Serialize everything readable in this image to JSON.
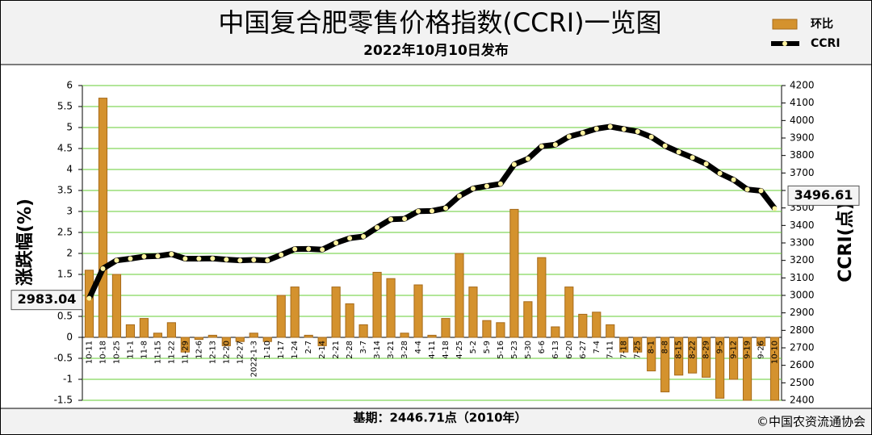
{
  "chart_data": {
    "type": "bar",
    "title": "中国复合肥零售价格指数(CCRI)一览图",
    "subtitle": "2022年10月10日发布",
    "y_label": "涨跌幅(%)",
    "y2_label": "CCRI(点)",
    "footnote": "基期：2446.71点（2010年）",
    "source": "©中国农资流通协会",
    "categories": [
      "10-11",
      "10-18",
      "10-25",
      "11-1",
      "11-8",
      "11-15",
      "11-22",
      "11-29",
      "12-6",
      "12-13",
      "12-20",
      "12-27",
      "2022-1-3",
      "1-10",
      "1-17",
      "1-24",
      "2-7",
      "2-14",
      "2-21",
      "2-28",
      "3-7",
      "3-14",
      "3-21",
      "3-28",
      "4-4",
      "4-11",
      "4-18",
      "4-25",
      "5-2",
      "5-9",
      "5-16",
      "5-23",
      "5-30",
      "6-6",
      "6-13",
      "6-20",
      "6-27",
      "7-4",
      "7-11",
      "7-18",
      "7-25",
      "8-1",
      "8-8",
      "8-15",
      "8-22",
      "8-29",
      "9-5",
      "9-12",
      "9-19",
      "9-26",
      "10-10"
    ],
    "series": [
      {
        "name": "环比",
        "type": "bar",
        "color": "#d4922e",
        "values": [
          1.6,
          5.7,
          1.5,
          0.3,
          0.45,
          0.1,
          0.35,
          -0.35,
          -0.05,
          0.05,
          -0.2,
          -0.1,
          0.1,
          -0.1,
          1.0,
          1.2,
          0.05,
          -0.2,
          1.2,
          0.8,
          0.3,
          1.55,
          1.4,
          0.1,
          1.25,
          0.05,
          0.45,
          2.0,
          1.2,
          0.4,
          0.35,
          3.05,
          0.85,
          1.9,
          0.25,
          1.2,
          0.55,
          0.6,
          0.3,
          -0.35,
          -0.35,
          -0.8,
          -1.3,
          -0.9,
          -0.85,
          -0.95,
          -1.45,
          -1.0,
          -1.5,
          -0.2,
          -1.5
        ]
      },
      {
        "name": "CCRI",
        "type": "line",
        "axis": "y2",
        "color": "#000000",
        "values": [
          2983.04,
          3153,
          3200,
          3210,
          3222,
          3225,
          3236,
          3210,
          3210,
          3211,
          3205,
          3200,
          3203,
          3200,
          3232,
          3265,
          3266,
          3262,
          3300,
          3327,
          3337,
          3388,
          3435,
          3438,
          3481,
          3483,
          3499,
          3568,
          3611,
          3625,
          3638,
          3749,
          3781,
          3852,
          3862,
          3908,
          3929,
          3953,
          3965,
          3951,
          3937,
          3906,
          3855,
          3820,
          3788,
          3752,
          3698,
          3661,
          3606,
          3598,
          3496.61
        ]
      }
    ],
    "ylim": [
      -1.5,
      6
    ],
    "yticks": [
      -1.5,
      -1,
      -0.5,
      0,
      0.5,
      1,
      1.5,
      2,
      2.5,
      3,
      3.5,
      4,
      4.5,
      5,
      5.5,
      6
    ],
    "y2lim": [
      2400,
      4200
    ],
    "y2ticks": [
      2400,
      2500,
      2600,
      2700,
      2800,
      2900,
      3000,
      3100,
      3200,
      3300,
      3400,
      3500,
      3600,
      3700,
      3800,
      3900,
      4000,
      4100,
      4200
    ],
    "grid": true,
    "grid_color": "#66cc33",
    "legend": "upper right"
  }
}
